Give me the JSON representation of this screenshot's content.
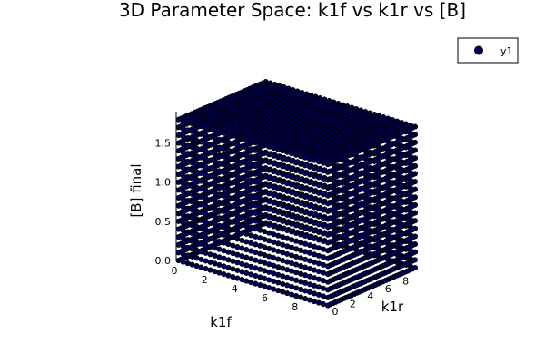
{
  "chart_data": {
    "type": "scatter",
    "title": "3D Parameter Space: k1f vs k1r vs [B]",
    "xlabel": "k1f",
    "ylabel": "k1r",
    "zlabel": "[B] final",
    "xlim": [
      0,
      10
    ],
    "ylim": [
      0,
      10
    ],
    "zlim": [
      0,
      1.9
    ],
    "x_ticks": [
      "0",
      "2",
      "4",
      "6",
      "8"
    ],
    "y_ticks": [
      "0",
      "2",
      "4",
      "6",
      "8"
    ],
    "z_ticks": [
      "0.0",
      "0.5",
      "1.0",
      "1.5"
    ],
    "x_tick_values": [
      0,
      2,
      4,
      6,
      8
    ],
    "y_tick_values": [
      0,
      2,
      4,
      6,
      8
    ],
    "z_tick_values": [
      0.0,
      0.5,
      1.0,
      1.5
    ],
    "legend_position": "top-right",
    "grid": true,
    "series": [
      {
        "name": "y1",
        "color": "#00005c",
        "grid": {
          "x": [
            0.1,
            0.4,
            0.7,
            1.0,
            1.3,
            1.6,
            1.9,
            2.2,
            2.5,
            2.8,
            3.1,
            3.4,
            3.7,
            4.0,
            4.3,
            4.6,
            4.9,
            5.2,
            5.5,
            5.8,
            6.1,
            6.4,
            6.7,
            7.0,
            7.3,
            7.6,
            7.9,
            8.2,
            8.5,
            8.8,
            9.1,
            9.4,
            9.7,
            10.0
          ],
          "y": [
            0.1,
            0.4,
            0.7,
            1.0,
            1.3,
            1.6,
            1.9,
            2.2,
            2.5,
            2.8,
            3.1,
            3.4,
            3.7,
            4.0,
            4.3,
            4.6,
            4.9,
            5.2,
            5.5,
            5.8,
            6.1,
            6.4,
            6.7,
            7.0,
            7.3,
            7.6,
            7.9,
            8.2,
            8.5,
            8.8,
            9.1,
            9.4,
            9.7,
            10.0
          ],
          "z": [
            0.0,
            0.1,
            0.2,
            0.3,
            0.4,
            0.5,
            0.6,
            0.7,
            0.8,
            0.9,
            1.0,
            1.1,
            1.2,
            1.3,
            1.4,
            1.5,
            1.6,
            1.7,
            1.8
          ]
        }
      }
    ]
  },
  "legend": {
    "label": "y1",
    "marker_color": "#00005c"
  }
}
